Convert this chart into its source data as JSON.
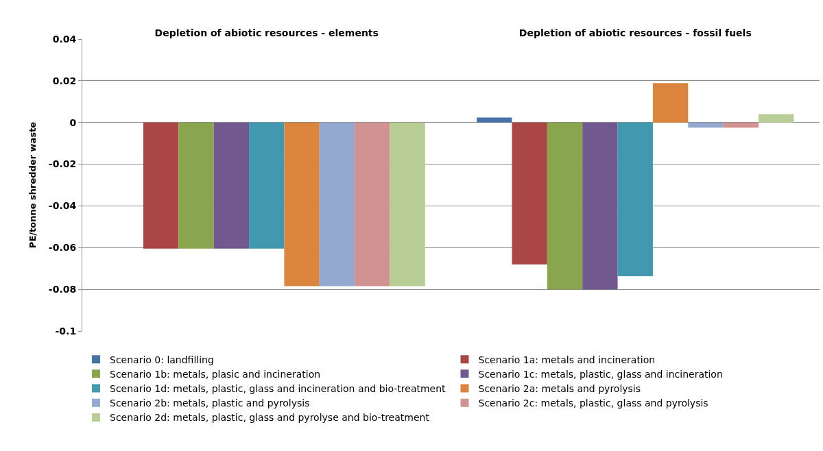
{
  "chart_data": {
    "type": "bar",
    "ylabel": "PE/tonne shredder waste",
    "categories": [
      "Depletion of abiotic resources - elements",
      "Depletion of abiotic resources - fossil fuels"
    ],
    "series": [
      {
        "name": "Scenario 0: landfilling",
        "color": "#4572a7",
        "values": [
          0,
          0.0024
        ]
      },
      {
        "name": "Scenario 1a: metals and incineration",
        "color": "#aa4643",
        "values": [
          -0.0605,
          -0.068
        ]
      },
      {
        "name": "Scenario 1b: metals, plasic and incineration",
        "color": "#89a54e",
        "values": [
          -0.0605,
          -0.08
        ]
      },
      {
        "name": "Scenario 1c: metals, plastic, glass and incineration",
        "color": "#71588f",
        "values": [
          -0.0605,
          -0.08
        ]
      },
      {
        "name": "Scenario 1d: metals, plastic, glass and incineration and bio-treatment",
        "color": "#4198af",
        "values": [
          -0.0605,
          -0.0737
        ]
      },
      {
        "name": "Scenario 2a: metals and pyrolysis",
        "color": "#db843d",
        "values": [
          -0.0785,
          0.0189
        ]
      },
      {
        "name": "Scenario 2b: metals, plastic and pyrolysis",
        "color": "#93a9cf",
        "values": [
          -0.0785,
          -0.0025
        ]
      },
      {
        "name": "Scenario 2c: metals, plastic, glass and pyrolysis",
        "color": "#d19392",
        "values": [
          -0.0785,
          -0.0025
        ]
      },
      {
        "name": "Scenario 2d: metals, plastic, glass and pyrolyse and bio-treatment",
        "color": "#b9cd96",
        "values": [
          -0.0785,
          0.004
        ]
      }
    ],
    "ylim": [
      -0.1,
      0.04
    ],
    "yticks": [
      -0.1,
      -0.08,
      -0.06,
      -0.04,
      -0.02,
      0,
      0.02,
      0.04
    ],
    "grid": "y",
    "legend": "bottom"
  }
}
